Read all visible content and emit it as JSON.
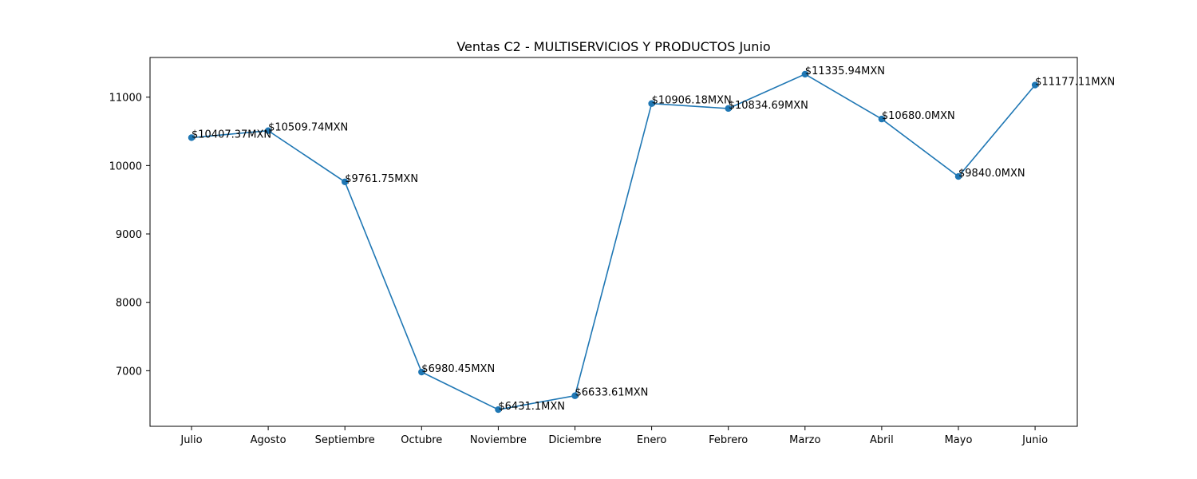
{
  "chart_data": {
    "type": "line",
    "title": "Ventas C2 - MULTISERVICIOS Y PRODUCTOS Junio",
    "xlabel": "",
    "ylabel": "",
    "categories": [
      "Julio",
      "Agosto",
      "Septiembre",
      "Octubre",
      "Noviembre",
      "Diciembre",
      "Enero",
      "Febrero",
      "Marzo",
      "Abril",
      "Mayo",
      "Junio"
    ],
    "series": [
      {
        "values": [
          10407.37,
          10509.74,
          9761.75,
          6980.45,
          6431.1,
          6633.61,
          10906.18,
          10834.69,
          11335.94,
          10680.0,
          9840.0,
          11177.11
        ],
        "labels": [
          "$10407.37MXN",
          "$10509.74MXN",
          "$9761.75MXN",
          "$6980.45MXN",
          "$6431.1MXN",
          "$6633.61MXN",
          "$10906.18MXN",
          "$10834.69MXN",
          "$11335.94MXN",
          "$10680.0MXN",
          "$9840.0MXN",
          "$11177.11MXN"
        ],
        "color": "#1f77b4"
      }
    ],
    "yticks": [
      7000,
      8000,
      9000,
      10000,
      11000
    ],
    "ylim": [
      6186.9,
      11580.1
    ],
    "grid": false,
    "legend": "none"
  }
}
